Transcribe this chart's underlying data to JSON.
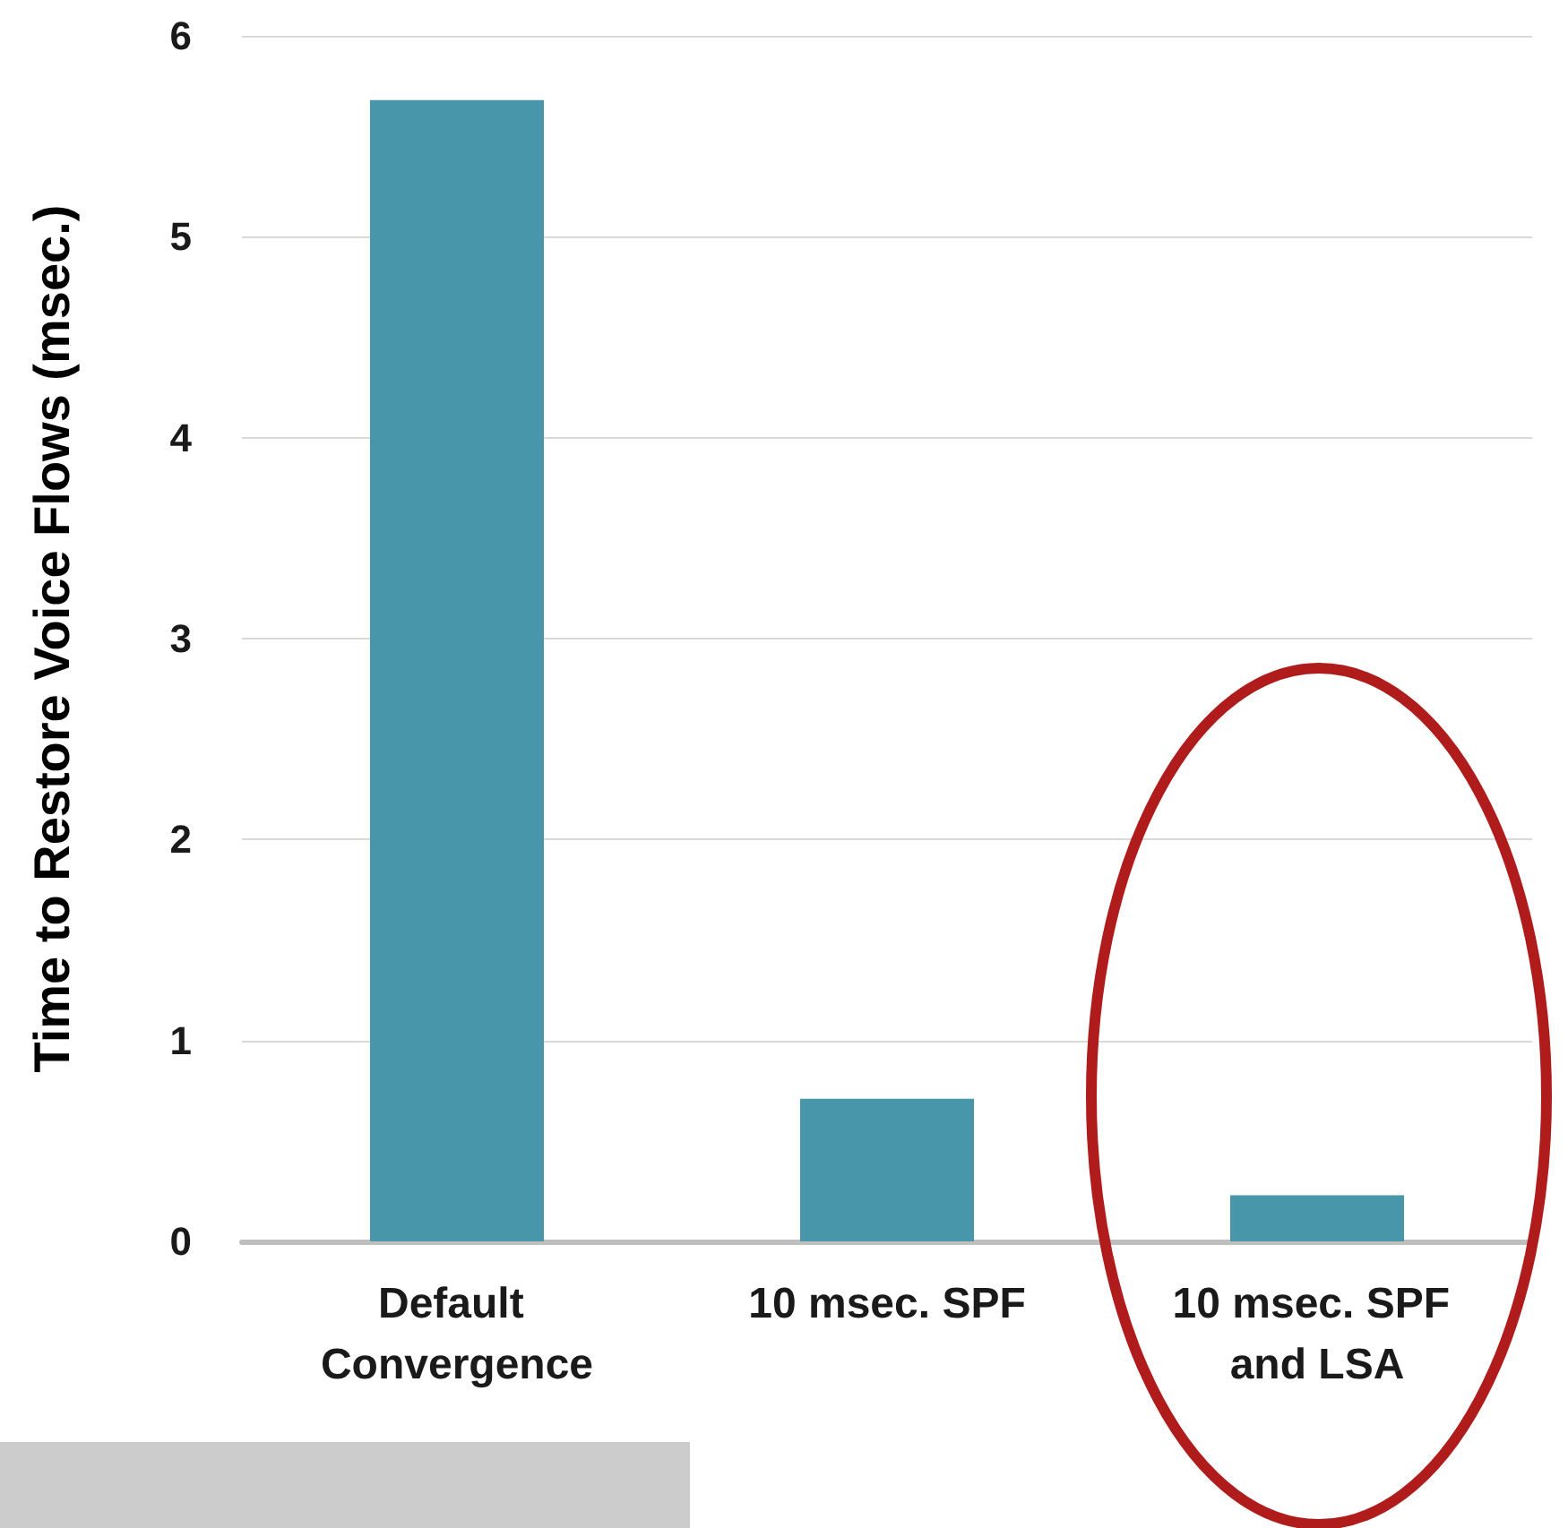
{
  "chart_data": {
    "type": "bar",
    "ylabel": "Time to Restore Voice Flows (msec.)",
    "categories": [
      "Default Convergence",
      "10 msec. SPF",
      "10 msec. SPF and LSA"
    ],
    "values": [
      5.68,
      0.71,
      0.23
    ],
    "color": "#4896aa",
    "ylim": [
      0,
      6
    ],
    "yticks": [
      0,
      1,
      2,
      3,
      4,
      5,
      6
    ],
    "grid": "y"
  }
}
